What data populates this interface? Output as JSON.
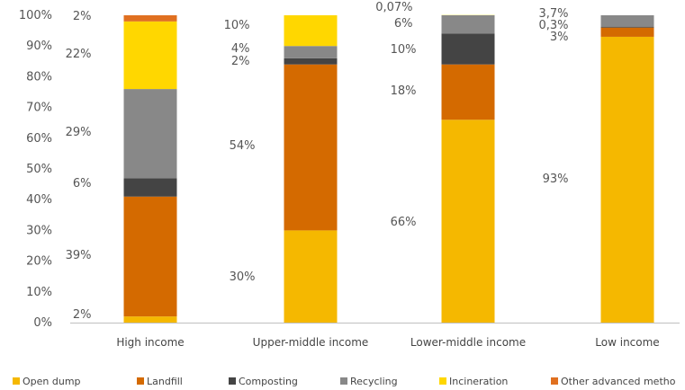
{
  "chart_data": {
    "type": "bar",
    "stacked": true,
    "categories": [
      "High income",
      "Upper-middle income",
      "Lower-middle income",
      "Low income"
    ],
    "ylim": [
      0,
      100
    ],
    "yticks": [
      "0%",
      "10%",
      "20%",
      "30%",
      "40%",
      "50%",
      "60%",
      "70%",
      "80%",
      "90%",
      "100%"
    ],
    "grid": false,
    "legend_position": "bottom",
    "series": [
      {
        "name": "Open dump",
        "color": "#F5B800",
        "values": [
          2,
          30,
          66,
          93
        ],
        "labels": [
          "2%",
          "30%",
          "66%",
          "93%"
        ]
      },
      {
        "name": "Landfill",
        "color": "#D46A00",
        "values": [
          39,
          54,
          18,
          3
        ],
        "labels": [
          "39%",
          "54%",
          "18%",
          "3%"
        ]
      },
      {
        "name": "Composting",
        "color": "#444444",
        "values": [
          6,
          2,
          10,
          0.3
        ],
        "labels": [
          "6%",
          "2%",
          "10%",
          "0,3%"
        ]
      },
      {
        "name": "Recycling",
        "color": "#888888",
        "values": [
          29,
          4,
          6,
          3.7
        ],
        "labels": [
          "29%",
          "4%",
          "6%",
          "3,7%"
        ]
      },
      {
        "name": "Incineration",
        "color": "#FFD700",
        "values": [
          22,
          10,
          0.07,
          0
        ],
        "labels": [
          "22%",
          "10%",
          "0,07%",
          ""
        ]
      },
      {
        "name": "Other advanced methods",
        "color": "#E07020",
        "values": [
          2,
          0,
          0,
          0
        ],
        "labels": [
          "2%",
          "",
          "",
          ""
        ]
      }
    ],
    "legend_labels": [
      "Open dump",
      "Landfill",
      "Composting",
      "Recycling",
      "Incineration",
      "Other advanced metho"
    ]
  }
}
